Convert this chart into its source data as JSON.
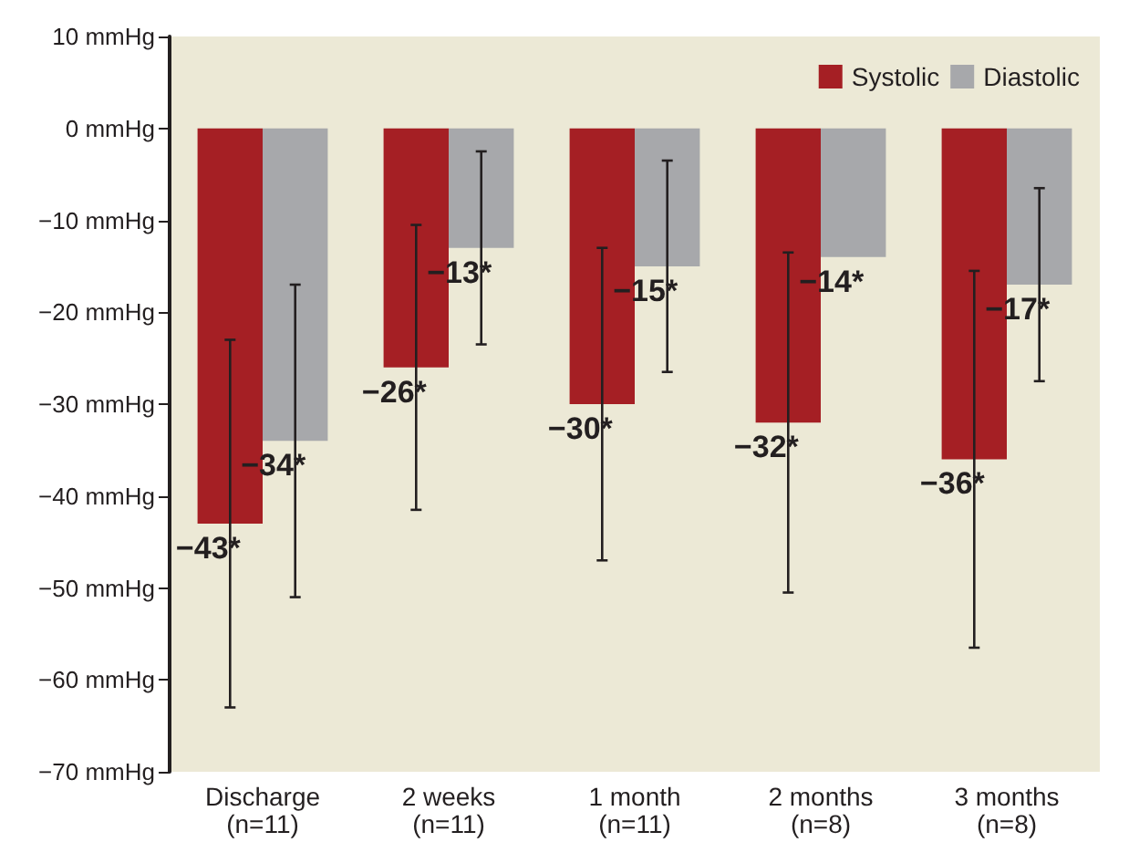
{
  "chart_data": {
    "type": "bar",
    "categories": [
      "Discharge\n(n=11)",
      "2 weeks\n(n=11)",
      "1 month\n(n=11)",
      "2 months\n(n=8)",
      "3 months\n(n=8)"
    ],
    "series": [
      {
        "name": "Systolic",
        "color": "#a51f24",
        "values": [
          -43,
          -26,
          -30,
          -32,
          -36
        ],
        "errors": [
          20,
          15.5,
          17,
          18.5,
          20.5
        ],
        "value_labels": [
          "−43*",
          "−26*",
          "−30*",
          "−32*",
          "−36*"
        ]
      },
      {
        "name": "Diastolic",
        "color": "#a7a8ab",
        "values": [
          -34,
          -13,
          -15,
          -14,
          -17
        ],
        "errors": [
          17,
          10.5,
          11.5,
          null,
          10.5
        ],
        "value_labels": [
          "−34*",
          "−13*",
          "−15*",
          "−14*",
          "−17*"
        ]
      }
    ],
    "ylim": [
      -70,
      10
    ],
    "yticks": [
      {
        "value": 10,
        "label": "10 mmHg"
      },
      {
        "value": 0,
        "label": "0 mmHg"
      },
      {
        "value": -10,
        "label": "−10 mmHg"
      },
      {
        "value": -20,
        "label": "−20 mmHg"
      },
      {
        "value": -30,
        "label": "−30 mmHg"
      },
      {
        "value": -40,
        "label": "−40 mmHg"
      },
      {
        "value": -50,
        "label": "−50 mmHg"
      },
      {
        "value": -60,
        "label": "−60 mmHg"
      },
      {
        "value": -70,
        "label": "−70 mmHg"
      }
    ],
    "grid": false,
    "legend": "top right"
  }
}
